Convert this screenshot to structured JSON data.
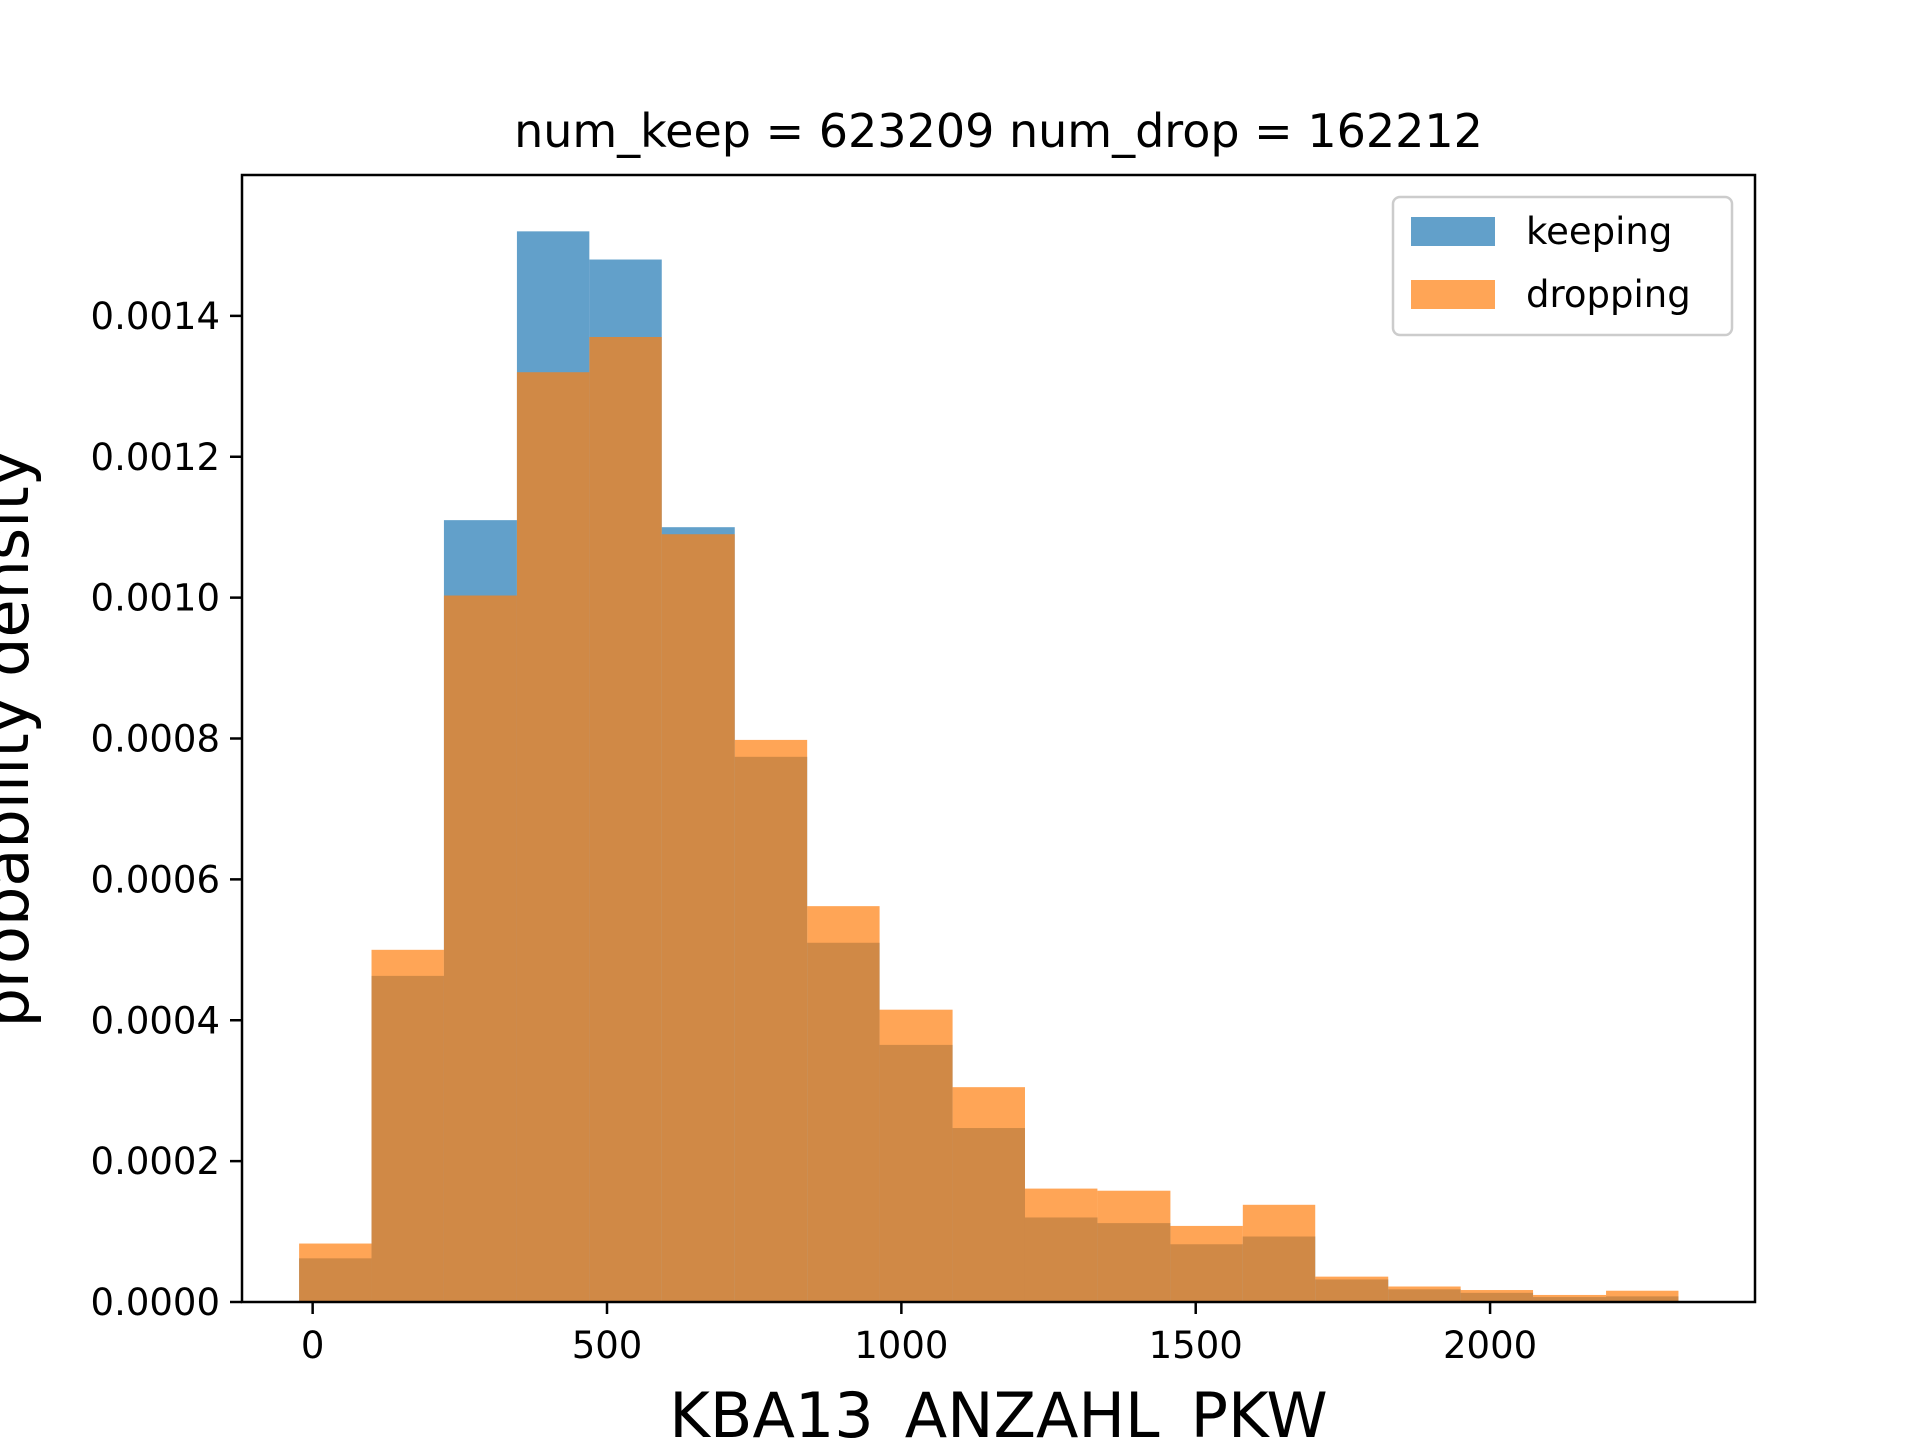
{
  "chart_data": {
    "type": "bar",
    "title": "num_keep = 623209  num_drop = 162212",
    "xlabel": "KBA13_ANZAHL_PKW",
    "ylabel": "probability density",
    "xlim": [
      -120,
      2450
    ],
    "ylim": [
      0,
      0.0016
    ],
    "xticks": [
      0,
      500,
      1000,
      1500,
      2000
    ],
    "xtick_labels": [
      "0",
      "500",
      "1000",
      "1500",
      "2000"
    ],
    "yticks": [
      0,
      0.0002,
      0.0004,
      0.0006,
      0.0008,
      0.001,
      0.0012,
      0.0014
    ],
    "ytick_labels": [
      "0.0000",
      "0.0002",
      "0.0004",
      "0.0006",
      "0.0008",
      "0.0010",
      "0.0012",
      "0.0014"
    ],
    "legend_position": "top-right",
    "grid": false,
    "bin_edges": [
      -23,
      100,
      223,
      347,
      470,
      593,
      717,
      840,
      963,
      1087,
      1210,
      1333,
      1457,
      1580,
      1703,
      1827,
      1950,
      2073,
      2197,
      2320
    ],
    "series": [
      {
        "name": "keeping",
        "color": "#1f77b4",
        "opacity": 0.7,
        "values": [
          6.2e-05,
          0.000463,
          0.00111,
          0.00152,
          0.00148,
          0.0011,
          0.000774,
          0.00051,
          0.000365,
          0.000247,
          0.00012,
          0.000112,
          8.2e-05,
          9.3e-05,
          3.2e-05,
          1.8e-05,
          1.3e-05,
          7e-06,
          8e-06
        ]
      },
      {
        "name": "dropping",
        "color": "#ff7f0e",
        "opacity": 0.7,
        "values": [
          8.3e-05,
          0.0005,
          0.001003,
          0.00132,
          0.00137,
          0.00109,
          0.000798,
          0.000562,
          0.000415,
          0.000305,
          0.000161,
          0.000158,
          0.000108,
          0.000138,
          3.6e-05,
          2.2e-05,
          1.7e-05,
          1e-05,
          1.6e-05
        ]
      }
    ]
  }
}
